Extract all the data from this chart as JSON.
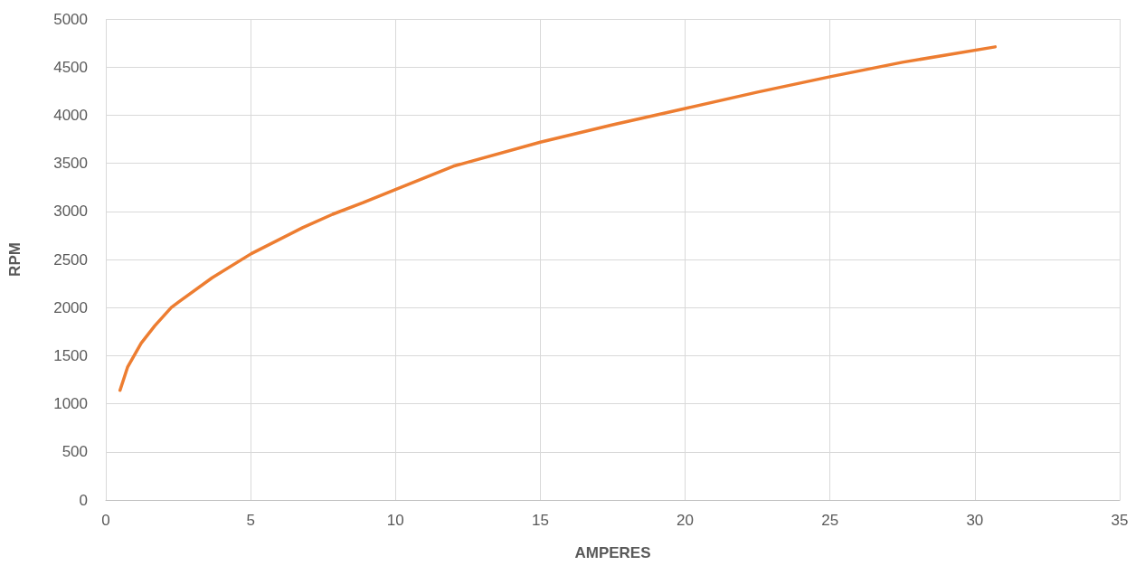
{
  "chart_data": {
    "type": "line",
    "xlabel": "AMPERES",
    "ylabel": "RPM",
    "x": [
      0.49,
      0.75,
      1.22,
      1.69,
      2.26,
      2.52,
      3.67,
      5.02,
      6.79,
      7.83,
      8.88,
      10.02,
      12,
      15,
      17.5,
      20,
      22.5,
      25,
      27.5,
      30.7
    ],
    "series": [
      {
        "color": "#ed7d31",
        "values": [
          1140,
          1380,
          1630,
          1810,
          2000,
          2060,
          2310,
          2560,
          2830,
          2970,
          3090,
          3230,
          3470,
          3720,
          3900,
          4070,
          4240,
          4400,
          4550,
          4710
        ]
      }
    ],
    "xlim": [
      0,
      35
    ],
    "xticks": [
      0,
      5,
      10,
      15,
      20,
      25,
      30,
      35
    ],
    "ylim": [
      0,
      5000
    ],
    "yticks": [
      0,
      500,
      1000,
      1500,
      2000,
      2500,
      3000,
      3500,
      4000,
      4500,
      5000
    ],
    "grid": true,
    "marker": "none",
    "line_style": "solid"
  }
}
